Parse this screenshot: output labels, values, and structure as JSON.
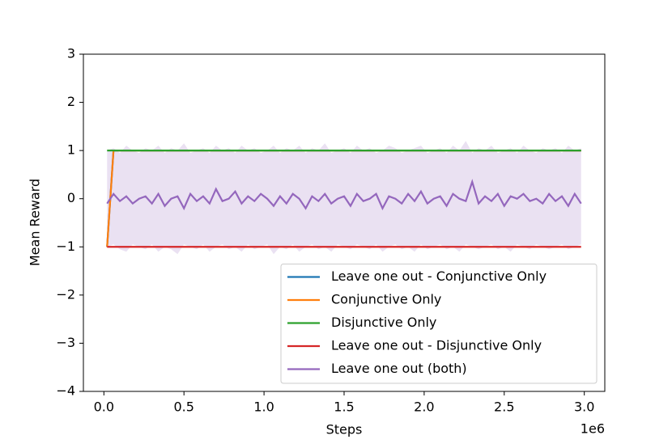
{
  "chart_data": {
    "type": "line",
    "xlabel": "Steps",
    "ylabel": "Mean Reward",
    "x_offset_label": "1e6",
    "xlim": [
      -0.128,
      3.128
    ],
    "ylim": [
      -4,
      3
    ],
    "xticks": [
      {
        "value": 0,
        "label": "0.0"
      },
      {
        "value": 0.5,
        "label": "0.5"
      },
      {
        "value": 1,
        "label": "1.0"
      },
      {
        "value": 1.5,
        "label": "1.5"
      },
      {
        "value": 2,
        "label": "2.0"
      },
      {
        "value": 2.5,
        "label": "2.5"
      },
      {
        "value": 3,
        "label": "3.0"
      }
    ],
    "yticks": [
      3,
      2,
      1,
      0,
      {
        "value": -1,
        "label": "−1"
      },
      {
        "value": -2,
        "label": "−2"
      },
      {
        "value": -3,
        "label": "−3"
      },
      {
        "value": -4,
        "label": "−4"
      }
    ],
    "legend_loc": "lower right",
    "x": [
      0.02,
      0.06,
      0.1,
      0.14,
      0.18,
      0.22,
      0.26,
      0.3,
      0.34,
      0.38,
      0.42,
      0.46,
      0.5,
      0.54,
      0.58,
      0.62,
      0.66,
      0.7,
      0.74,
      0.78,
      0.82,
      0.86,
      0.9,
      0.94,
      0.98,
      1.02,
      1.06,
      1.1,
      1.14,
      1.18,
      1.22,
      1.26,
      1.3,
      1.34,
      1.38,
      1.42,
      1.46,
      1.5,
      1.54,
      1.58,
      1.62,
      1.66,
      1.7,
      1.74,
      1.78,
      1.82,
      1.86,
      1.9,
      1.94,
      1.98,
      2.02,
      2.06,
      2.1,
      2.14,
      2.18,
      2.22,
      2.26,
      2.3,
      2.34,
      2.38,
      2.42,
      2.46,
      2.5,
      2.54,
      2.58,
      2.62,
      2.66,
      2.7,
      2.74,
      2.78,
      2.82,
      2.86,
      2.9,
      2.94,
      2.98
    ],
    "series": [
      {
        "name": "Leave one out - Conjunctive Only",
        "color": "#1f77b4",
        "values": [
          -1,
          1,
          1,
          1,
          1,
          1,
          1,
          1,
          1,
          1,
          1,
          1,
          1,
          1,
          1,
          1,
          1,
          1,
          1,
          1,
          1,
          1,
          1,
          1,
          1,
          1,
          1,
          1,
          1,
          1,
          1,
          1,
          1,
          1,
          1,
          1,
          1,
          1,
          1,
          1,
          1,
          1,
          1,
          1,
          1,
          1,
          1,
          1,
          1,
          1,
          1,
          1,
          1,
          1,
          1,
          1,
          1,
          1,
          1,
          1,
          1,
          1,
          1,
          1,
          1,
          1,
          1,
          1,
          1,
          1,
          1,
          1,
          1,
          1,
          1
        ]
      },
      {
        "name": "Conjunctive Only",
        "color": "#ff7f0e",
        "values": [
          -1,
          1,
          1,
          1,
          1,
          1,
          1,
          1,
          1,
          1,
          1,
          1,
          1,
          1,
          1,
          1,
          1,
          1,
          1,
          1,
          1,
          1,
          1,
          1,
          1,
          1,
          1,
          1,
          1,
          1,
          1,
          1,
          1,
          1,
          1,
          1,
          1,
          1,
          1,
          1,
          1,
          1,
          1,
          1,
          1,
          1,
          1,
          1,
          1,
          1,
          1,
          1,
          1,
          1,
          1,
          1,
          1,
          1,
          1,
          1,
          1,
          1,
          1,
          1,
          1,
          1,
          1,
          1,
          1,
          1,
          1,
          1,
          1,
          1,
          1
        ]
      },
      {
        "name": "Disjunctive Only",
        "color": "#2ca02c",
        "values": [
          1,
          1,
          1,
          1,
          1,
          1,
          1,
          1,
          1,
          1,
          1,
          1,
          1,
          1,
          1,
          1,
          1,
          1,
          1,
          1,
          1,
          1,
          1,
          1,
          1,
          1,
          1,
          1,
          1,
          1,
          1,
          1,
          1,
          1,
          1,
          1,
          1,
          1,
          1,
          1,
          1,
          1,
          1,
          1,
          1,
          1,
          1,
          1,
          1,
          1,
          1,
          1,
          1,
          1,
          1,
          1,
          1,
          1,
          1,
          1,
          1,
          1,
          1,
          1,
          1,
          1,
          1,
          1,
          1,
          1,
          1,
          1,
          1,
          1,
          1
        ]
      },
      {
        "name": "Leave one out - Disjunctive Only",
        "color": "#d62728",
        "values": [
          -1,
          -1,
          -1,
          -1,
          -1,
          -1,
          -1,
          -1,
          -1,
          -1,
          -1,
          -1,
          -1,
          -1,
          -1,
          -1,
          -1,
          -1,
          -1,
          -1,
          -1,
          -1,
          -1,
          -1,
          -1,
          -1,
          -1,
          -1,
          -1,
          -1,
          -1,
          -1,
          -1,
          -1,
          -1,
          -1,
          -1,
          -1,
          -1,
          -1,
          -1,
          -1,
          -1,
          -1,
          -1,
          -1,
          -1,
          -1,
          -1,
          -1,
          -1,
          -1,
          -1,
          -1,
          -1,
          -1,
          -1,
          -1,
          -1,
          -1,
          -1,
          -1,
          -1,
          -1,
          -1,
          -1,
          -1,
          -1,
          -1,
          -1,
          -1,
          -1,
          -1,
          -1,
          -1
        ]
      },
      {
        "name": "Leave one out (both)",
        "color": "#9467bd",
        "values": [
          -0.1,
          0.1,
          -0.05,
          0.05,
          -0.1,
          0.0,
          0.05,
          -0.1,
          0.1,
          -0.15,
          0.0,
          0.05,
          -0.2,
          0.1,
          -0.05,
          0.05,
          -0.1,
          0.2,
          -0.05,
          0.0,
          0.15,
          -0.1,
          0.05,
          -0.05,
          0.1,
          0.0,
          -0.15,
          0.05,
          -0.1,
          0.1,
          0.0,
          -0.2,
          0.05,
          -0.05,
          0.1,
          -0.1,
          0.0,
          0.05,
          -0.15,
          0.1,
          -0.05,
          0.0,
          0.1,
          -0.2,
          0.05,
          0.0,
          -0.1,
          0.1,
          -0.05,
          0.15,
          -0.1,
          0.0,
          0.05,
          -0.15,
          0.1,
          0.0,
          -0.05,
          0.35,
          -0.1,
          0.05,
          -0.05,
          0.1,
          -0.15,
          0.05,
          0.0,
          0.1,
          -0.05,
          0.0,
          -0.1,
          0.1,
          -0.05,
          0.05,
          -0.15,
          0.1,
          -0.1
        ],
        "band": {
          "upper": [
            1.0,
            1.05,
            0.95,
            1.1,
            1.0,
            0.95,
            1.05,
            1.0,
            1.1,
            0.95,
            1.05,
            1.0,
            1.15,
            0.95,
            1.0,
            1.05,
            0.95,
            1.1,
            1.0,
            1.05,
            0.95,
            1.1,
            1.0,
            1.05,
            0.95,
            1.0,
            1.1,
            0.95,
            1.05,
            1.0,
            1.1,
            0.95,
            1.05,
            1.0,
            1.15,
            0.95,
            1.0,
            1.05,
            0.95,
            1.1,
            1.0,
            1.05,
            0.95,
            1.0,
            1.1,
            1.05,
            0.95,
            1.0,
            1.05,
            1.1,
            0.95,
            1.0,
            1.05,
            0.95,
            1.1,
            1.0,
            1.2,
            0.95,
            1.05,
            1.0,
            1.1,
            0.95,
            1.0,
            1.05,
            0.95,
            1.1,
            1.0,
            0.95,
            1.05,
            1.0,
            1.05,
            0.95,
            1.1,
            1.0,
            1.05
          ],
          "lower": [
            -1.0,
            -0.95,
            -1.05,
            -1.1,
            -0.95,
            -1.0,
            -1.05,
            -0.95,
            -1.1,
            -1.0,
            -1.05,
            -1.15,
            -0.95,
            -1.0,
            -1.05,
            -0.95,
            -1.1,
            -1.0,
            -0.95,
            -1.05,
            -1.0,
            -1.1,
            -0.95,
            -1.05,
            -1.0,
            -0.95,
            -1.15,
            -1.0,
            -1.05,
            -0.95,
            -1.1,
            -1.0,
            -0.95,
            -1.05,
            -1.0,
            -1.1,
            -0.95,
            -1.0,
            -1.05,
            -0.95,
            -1.0,
            -1.05,
            -0.95,
            -1.1,
            -1.0,
            -0.95,
            -1.05,
            -1.0,
            -1.1,
            -0.95,
            -1.05,
            -1.0,
            -0.95,
            -1.05,
            -1.0,
            -1.1,
            -0.95,
            -1.0,
            -1.05,
            -1.0,
            -0.95,
            -1.05,
            -1.0,
            -1.1,
            -0.95,
            -1.0,
            -1.05,
            -0.95,
            -1.0,
            -1.05,
            -1.0,
            -0.95,
            -1.05,
            -1.0,
            -0.95
          ]
        }
      }
    ]
  }
}
